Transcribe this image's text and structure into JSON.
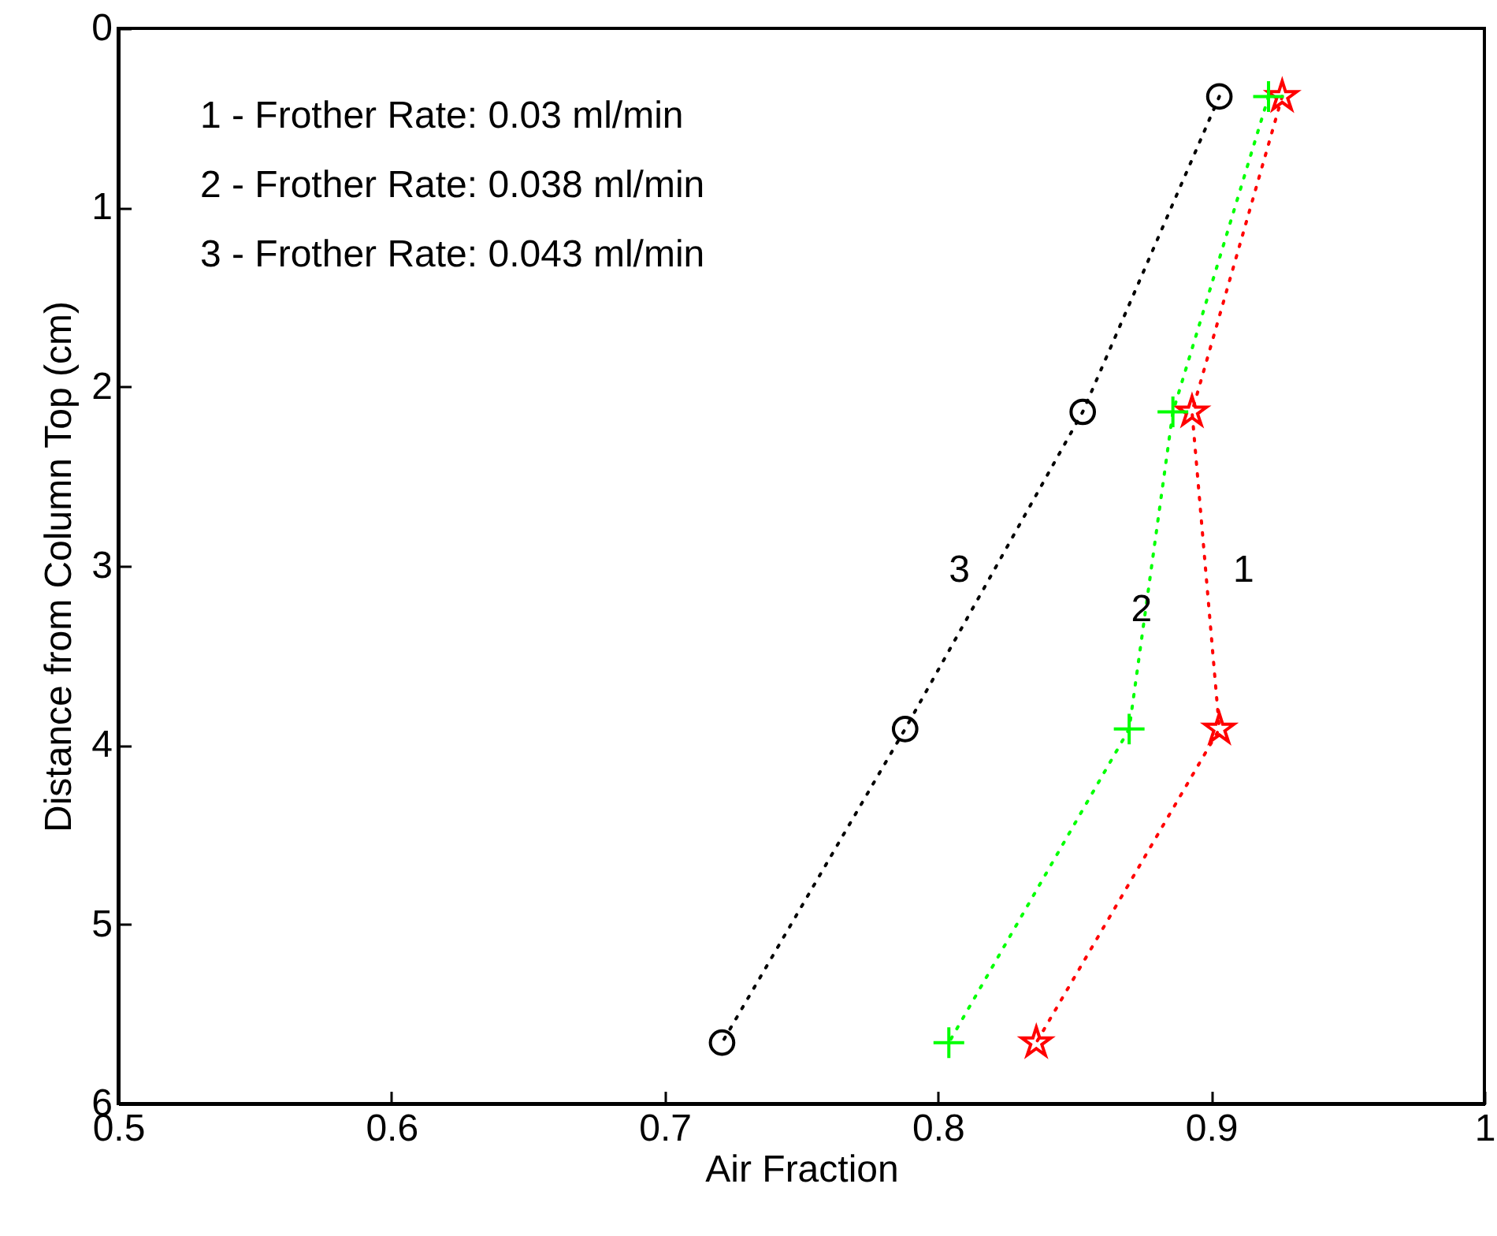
{
  "chart_data": {
    "type": "line",
    "xlabel": "Air Fraction",
    "ylabel": "Distance from Column Top (cm)",
    "xlim": [
      0.5,
      1
    ],
    "xticks": [
      0.5,
      0.6,
      0.7,
      0.8,
      0.9,
      1
    ],
    "ylim": [
      6,
      0
    ],
    "yticks": [
      0,
      1,
      2,
      3,
      4,
      5,
      6
    ],
    "x": [
      0.38,
      2.14,
      3.91,
      5.66
    ],
    "orientation": "horizontal",
    "line_style": "dotted",
    "grid": false,
    "series": [
      {
        "name": "1",
        "color": "#ff0000",
        "marker": "star",
        "values": [
          0.926,
          0.893,
          0.903,
          0.836
        ]
      },
      {
        "name": "2",
        "color": "#00ff00",
        "marker": "cross",
        "values": [
          0.921,
          0.886,
          0.87,
          0.804
        ]
      },
      {
        "name": "3",
        "color": "#000000",
        "marker": "circle",
        "values": [
          0.903,
          0.853,
          0.788,
          0.721
        ]
      }
    ],
    "annotations": [
      "1 - Frother Rate: 0.03 ml/min",
      "2 - Frother Rate: 0.038 ml/min",
      "3 - Frother Rate: 0.043 ml/min"
    ]
  }
}
